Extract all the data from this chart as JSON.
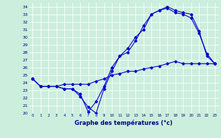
{
  "xlabel": "Graphe des températures (°c)",
  "background_color": "#cceedd",
  "line_color": "#0000cc",
  "ylim": [
    20,
    34.5
  ],
  "xlim": [
    -0.5,
    23.5
  ],
  "yticks": [
    20,
    21,
    22,
    23,
    24,
    25,
    26,
    27,
    28,
    29,
    30,
    31,
    32,
    33,
    34
  ],
  "xticks": [
    0,
    1,
    2,
    3,
    4,
    5,
    6,
    7,
    8,
    9,
    10,
    11,
    12,
    13,
    14,
    15,
    16,
    17,
    18,
    19,
    20,
    21,
    22,
    23
  ],
  "series": [
    {
      "x": [
        0,
        1,
        2,
        3,
        4,
        5,
        6,
        7,
        8,
        9,
        10,
        11,
        12,
        13,
        14,
        15,
        16,
        17,
        18,
        19,
        20,
        21,
        22,
        23
      ],
      "y": [
        24.5,
        23.5,
        23.5,
        23.5,
        23.2,
        23.2,
        22.2,
        20.8,
        20.0,
        23.2,
        25.5,
        27.5,
        28.5,
        30.0,
        31.0,
        33.0,
        33.5,
        34.0,
        33.5,
        33.2,
        33.0,
        30.8,
        27.5,
        26.5
      ]
    },
    {
      "x": [
        0,
        1,
        2,
        3,
        4,
        5,
        6,
        7,
        8,
        9,
        10,
        11,
        12,
        13,
        14,
        15,
        16,
        17,
        18,
        19,
        20,
        21,
        22,
        23
      ],
      "y": [
        24.5,
        23.5,
        23.5,
        23.5,
        23.2,
        23.2,
        22.5,
        20.2,
        21.5,
        23.5,
        26.0,
        27.5,
        28.0,
        29.5,
        31.5,
        33.0,
        33.5,
        33.8,
        33.2,
        33.0,
        32.5,
        30.5,
        27.8,
        26.5
      ]
    },
    {
      "x": [
        0,
        1,
        2,
        3,
        4,
        5,
        6,
        7,
        8,
        9,
        10,
        11,
        12,
        13,
        14,
        15,
        16,
        17,
        18,
        19,
        20,
        21,
        22,
        23
      ],
      "y": [
        24.5,
        23.5,
        23.5,
        23.5,
        23.8,
        23.8,
        23.8,
        23.8,
        24.2,
        24.5,
        25.0,
        25.2,
        25.5,
        25.5,
        25.8,
        26.0,
        26.2,
        26.5,
        26.8,
        26.5,
        26.5,
        26.5,
        26.5,
        26.5
      ]
    }
  ]
}
